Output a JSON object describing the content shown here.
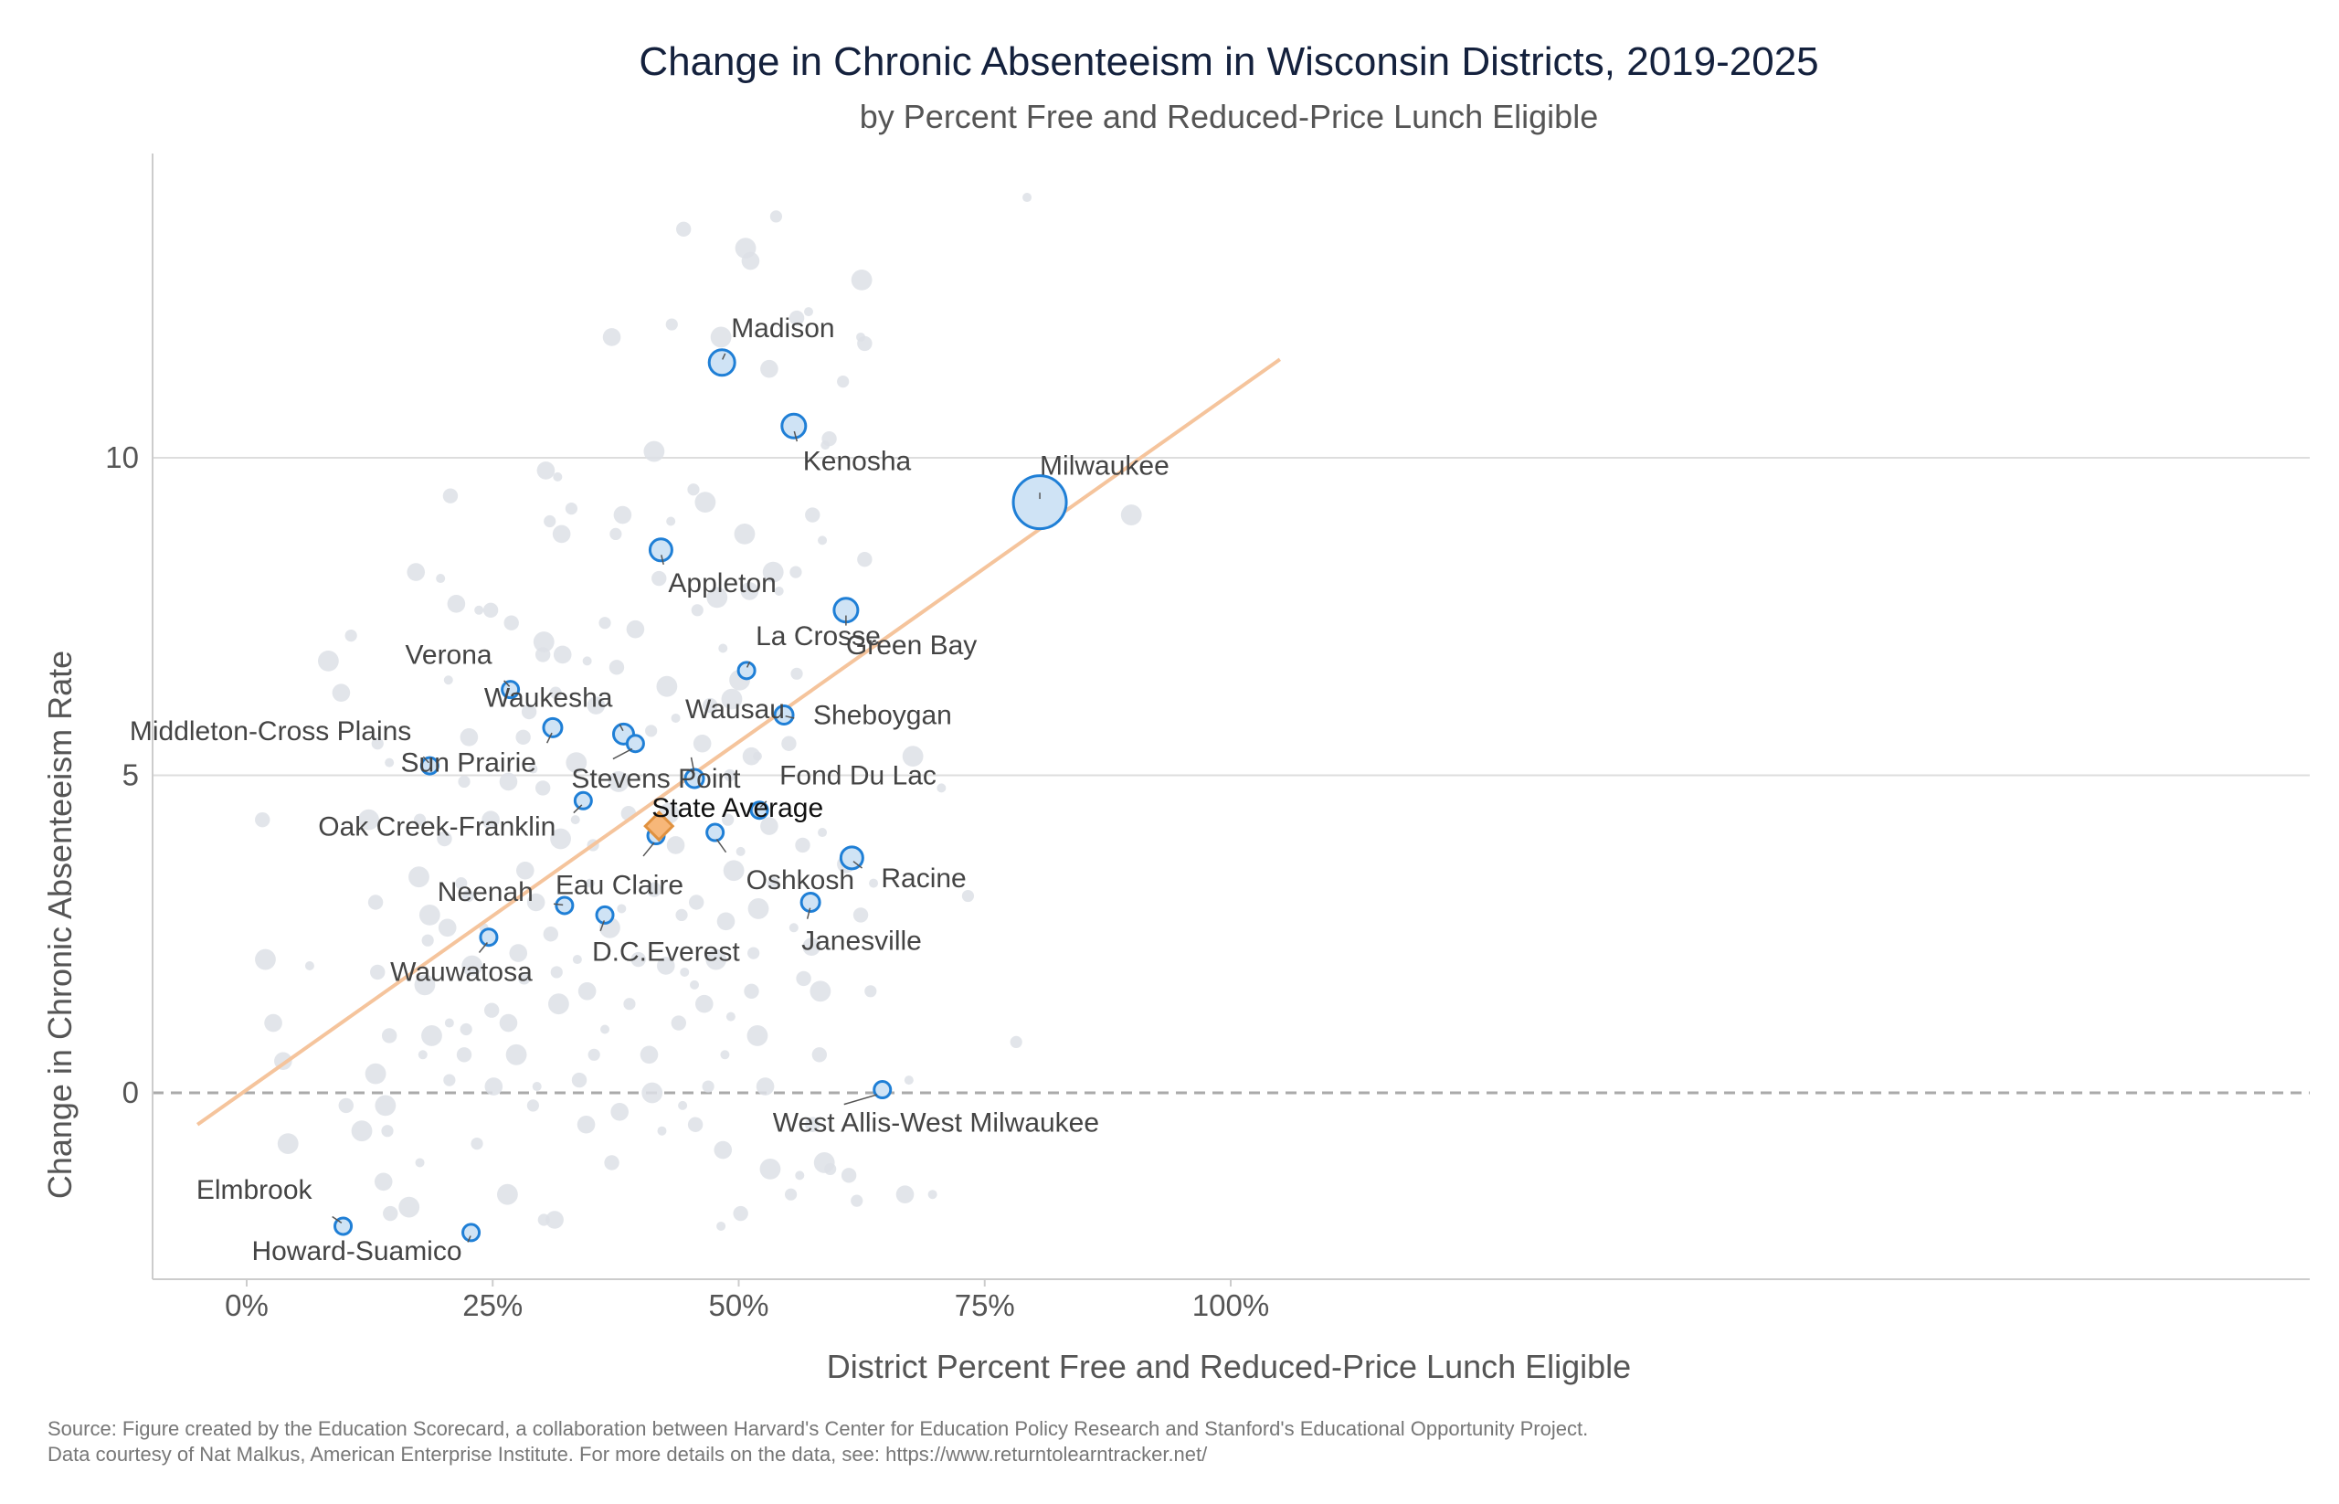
{
  "chart_data": {
    "type": "scatter",
    "title": "Change in Chronic Absenteeism in Wisconsin Districts, 2019-2025",
    "subtitle": "by Percent Free and Reduced-Price Lunch Eligible",
    "xlabel": "District Percent Free and Reduced-Price Lunch Eligible",
    "ylabel": "Change in Chronic Absenteeism Rate",
    "xlim": [
      -5,
      105
    ],
    "ylim": [
      -3,
      14.8
    ],
    "x_ticks": [
      0,
      25,
      50,
      75,
      100
    ],
    "x_tick_labels": [
      "0%",
      "25%",
      "50%",
      "75%",
      "100%"
    ],
    "y_ticks": [
      0,
      5,
      10
    ],
    "y_tick_labels": [
      "0",
      "5",
      "10"
    ],
    "grid": true,
    "colors": {
      "highlight_fill": "#cfe3f5",
      "highlight_stroke": "#1f7fd6",
      "background_point": "#dde1e6",
      "trend_line": "#f5c49c",
      "average_fill": "#f7b779",
      "average_stroke": "#e0913f",
      "zero_line": "#aaaaaa",
      "gridline": "#dddddd"
    },
    "trend_line": {
      "x": [
        -5,
        105
      ],
      "y": [
        -0.5,
        11.55
      ]
    },
    "average": {
      "label": "State Average",
      "x": 41.9,
      "y": 4.2
    },
    "highlighted": [
      {
        "label": "Madison",
        "x": 48.3,
        "y": 11.5,
        "size": 11
      },
      {
        "label": "Kenosha",
        "x": 55.6,
        "y": 10.5,
        "size": 10
      },
      {
        "label": "Milwaukee",
        "x": 80.6,
        "y": 9.3,
        "size": 26
      },
      {
        "label": "Appleton",
        "x": 42.1,
        "y": 8.55,
        "size": 9
      },
      {
        "label": "Green Bay",
        "x": 60.9,
        "y": 7.6,
        "size": 10
      },
      {
        "label": "La Crosse",
        "x": 50.8,
        "y": 6.65,
        "size": 6
      },
      {
        "label": "Verona",
        "x": 26.8,
        "y": 6.35,
        "size": 6
      },
      {
        "label": "Sheboygan",
        "x": 54.6,
        "y": 5.95,
        "size": 7
      },
      {
        "label": "Sun Prairie",
        "x": 31.1,
        "y": 5.75,
        "size": 7
      },
      {
        "label": "Waukesha",
        "x": 38.3,
        "y": 5.65,
        "size": 8
      },
      {
        "label": "Stevens Point",
        "x": 39.5,
        "y": 5.5,
        "size": 6
      },
      {
        "label": "Middleton-Cross Plains",
        "x": 18.6,
        "y": 5.15,
        "size": 6
      },
      {
        "label": "Wausau",
        "x": 45.5,
        "y": 4.95,
        "size": 7
      },
      {
        "label": "Oak Creek-Franklin",
        "x": 34.2,
        "y": 4.6,
        "size": 6
      },
      {
        "label": "Fond Du Lac",
        "x": 52.1,
        "y": 4.45,
        "size": 6
      },
      {
        "label": "Oshkosh",
        "x": 47.6,
        "y": 4.1,
        "size": 6
      },
      {
        "label": "Racine",
        "x": 61.5,
        "y": 3.7,
        "size": 9
      },
      {
        "label": "Eau Claire",
        "x": 41.6,
        "y": 4.05,
        "size": 6
      },
      {
        "label": "Neenah",
        "x": 32.3,
        "y": 2.95,
        "size": 6
      },
      {
        "label": "Janesville",
        "x": 57.3,
        "y": 3.0,
        "size": 7
      },
      {
        "label": "D.C.Everest",
        "x": 36.4,
        "y": 2.8,
        "size": 6
      },
      {
        "label": "Wauwatosa",
        "x": 24.6,
        "y": 2.45,
        "size": 6
      },
      {
        "label": "West Allis-West Milwaukee",
        "x": 64.6,
        "y": 0.05,
        "size": 6
      },
      {
        "label": "Elmbrook",
        "x": 9.8,
        "y": -2.1,
        "size": 6
      },
      {
        "label": "Howard-Suamico",
        "x": 22.8,
        "y": -2.2,
        "size": 6
      }
    ],
    "other_districts": [
      [
        79.3,
        14.1
      ],
      [
        44.4,
        13.6
      ],
      [
        50.7,
        13.3
      ],
      [
        53.8,
        13.8
      ],
      [
        51.2,
        13.1
      ],
      [
        57.1,
        12.3
      ],
      [
        55.9,
        12.2
      ],
      [
        62.5,
        12.8
      ],
      [
        43.2,
        12.1
      ],
      [
        37.1,
        11.9
      ],
      [
        62.4,
        11.9
      ],
      [
        62.8,
        11.8
      ],
      [
        48.2,
        11.9
      ],
      [
        60.6,
        11.2
      ],
      [
        53.1,
        11.4
      ],
      [
        58.8,
        10.2
      ],
      [
        59.2,
        10.3
      ],
      [
        41.4,
        10.1
      ],
      [
        45.4,
        9.5
      ],
      [
        30.4,
        9.8
      ],
      [
        31.6,
        9.7
      ],
      [
        20.7,
        9.4
      ],
      [
        46.6,
        9.3
      ],
      [
        30.8,
        9.0
      ],
      [
        38.2,
        9.1
      ],
      [
        43.1,
        9.0
      ],
      [
        57.5,
        9.1
      ],
      [
        50.6,
        8.8
      ],
      [
        37.5,
        8.8
      ],
      [
        32.0,
        8.8
      ],
      [
        58.5,
        8.7
      ],
      [
        62.8,
        8.4
      ],
      [
        89.9,
        9.1
      ],
      [
        33.0,
        9.2
      ],
      [
        17.2,
        8.2
      ],
      [
        19.7,
        8.1
      ],
      [
        41.9,
        8.1
      ],
      [
        53.5,
        8.2
      ],
      [
        55.8,
        8.2
      ],
      [
        51.1,
        7.9
      ],
      [
        54.1,
        7.9
      ],
      [
        24.8,
        7.6
      ],
      [
        47.8,
        7.8
      ],
      [
        45.8,
        7.6
      ],
      [
        21.3,
        7.7
      ],
      [
        23.6,
        7.6
      ],
      [
        26.9,
        7.4
      ],
      [
        30.2,
        7.1
      ],
      [
        36.4,
        7.4
      ],
      [
        39.5,
        7.3
      ],
      [
        48.4,
        7.0
      ],
      [
        30.1,
        6.9
      ],
      [
        8.3,
        6.8
      ],
      [
        10.6,
        7.2
      ],
      [
        32.1,
        6.9
      ],
      [
        34.6,
        6.8
      ],
      [
        37.6,
        6.7
      ],
      [
        50.1,
        6.5
      ],
      [
        55.9,
        6.6
      ],
      [
        9.6,
        6.3
      ],
      [
        20.5,
        6.5
      ],
      [
        28.7,
        6.0
      ],
      [
        42.7,
        6.4
      ],
      [
        31.4,
        6.3
      ],
      [
        35.5,
        6.1
      ],
      [
        43.6,
        5.9
      ],
      [
        47.1,
        6.1
      ],
      [
        49.3,
        6.2
      ],
      [
        13.3,
        5.5
      ],
      [
        22.6,
        5.6
      ],
      [
        14.5,
        5.2
      ],
      [
        28.1,
        5.6
      ],
      [
        33.5,
        5.2
      ],
      [
        41.1,
        5.7
      ],
      [
        46.3,
        5.5
      ],
      [
        51.9,
        5.3
      ],
      [
        55.1,
        5.5
      ],
      [
        67.7,
        5.3
      ],
      [
        22.1,
        4.9
      ],
      [
        26.6,
        4.9
      ],
      [
        29.1,
        5.1
      ],
      [
        30.1,
        4.8
      ],
      [
        37.8,
        4.9
      ],
      [
        49.1,
        5.0
      ],
      [
        51.3,
        5.3
      ],
      [
        70.6,
        4.8
      ],
      [
        1.6,
        4.3
      ],
      [
        12.4,
        4.3
      ],
      [
        17.6,
        4.3
      ],
      [
        24.8,
        4.3
      ],
      [
        33.4,
        4.3
      ],
      [
        38.8,
        4.4
      ],
      [
        42.9,
        4.4
      ],
      [
        48.9,
        4.3
      ],
      [
        53.1,
        4.2
      ],
      [
        58.5,
        4.1
      ],
      [
        20.1,
        4.0
      ],
      [
        31.9,
        4.0
      ],
      [
        35.2,
        3.9
      ],
      [
        43.6,
        3.9
      ],
      [
        50.2,
        3.8
      ],
      [
        56.5,
        3.9
      ],
      [
        17.5,
        3.4
      ],
      [
        21.8,
        3.3
      ],
      [
        28.3,
        3.5
      ],
      [
        34.9,
        3.3
      ],
      [
        41.4,
        3.2
      ],
      [
        49.5,
        3.5
      ],
      [
        53.5,
        3.3
      ],
      [
        60.9,
        3.6
      ],
      [
        63.7,
        3.3
      ],
      [
        13.1,
        3.0
      ],
      [
        18.6,
        2.8
      ],
      [
        22.5,
        3.1
      ],
      [
        29.4,
        3.0
      ],
      [
        38.1,
        2.9
      ],
      [
        45.7,
        3.0
      ],
      [
        52.0,
        2.9
      ],
      [
        73.3,
        3.1
      ],
      [
        20.4,
        2.6
      ],
      [
        24.1,
        2.6
      ],
      [
        30.9,
        2.5
      ],
      [
        36.9,
        2.6
      ],
      [
        44.2,
        2.8
      ],
      [
        48.7,
        2.7
      ],
      [
        55.6,
        2.6
      ],
      [
        62.4,
        2.8
      ],
      [
        1.9,
        2.1
      ],
      [
        18.4,
        2.4
      ],
      [
        27.6,
        2.2
      ],
      [
        33.6,
        2.1
      ],
      [
        39.8,
        2.1
      ],
      [
        47.7,
        2.1
      ],
      [
        51.5,
        2.2
      ],
      [
        57.4,
        2.3
      ],
      [
        6.4,
        2.0
      ],
      [
        13.3,
        1.9
      ],
      [
        22.9,
        2.0
      ],
      [
        31.5,
        1.9
      ],
      [
        42.6,
        2.0
      ],
      [
        44.5,
        1.9
      ],
      [
        56.6,
        1.8
      ],
      [
        18.1,
        1.7
      ],
      [
        28.2,
        1.8
      ],
      [
        34.6,
        1.6
      ],
      [
        45.5,
        1.7
      ],
      [
        51.3,
        1.6
      ],
      [
        58.3,
        1.6
      ],
      [
        63.4,
        1.6
      ],
      [
        2.7,
        1.1
      ],
      [
        20.6,
        1.1
      ],
      [
        24.9,
        1.3
      ],
      [
        31.7,
        1.4
      ],
      [
        38.9,
        1.4
      ],
      [
        46.5,
        1.4
      ],
      [
        49.2,
        1.2
      ],
      [
        14.5,
        0.9
      ],
      [
        18.8,
        0.9
      ],
      [
        22.3,
        1.0
      ],
      [
        26.6,
        1.1
      ],
      [
        36.4,
        1.0
      ],
      [
        43.9,
        1.1
      ],
      [
        51.9,
        0.9
      ],
      [
        78.2,
        0.8
      ],
      [
        3.7,
        0.5
      ],
      [
        17.9,
        0.6
      ],
      [
        22.1,
        0.6
      ],
      [
        27.4,
        0.6
      ],
      [
        35.3,
        0.6
      ],
      [
        40.9,
        0.6
      ],
      [
        48.6,
        0.6
      ],
      [
        58.2,
        0.6
      ],
      [
        13.1,
        0.3
      ],
      [
        20.6,
        0.2
      ],
      [
        25.1,
        0.1
      ],
      [
        29.5,
        0.1
      ],
      [
        33.8,
        0.2
      ],
      [
        41.2,
        0.0
      ],
      [
        46.9,
        0.1
      ],
      [
        52.7,
        0.1
      ],
      [
        67.3,
        0.2
      ],
      [
        10.1,
        -0.2
      ],
      [
        14.1,
        -0.2
      ],
      [
        29.1,
        -0.2
      ],
      [
        37.9,
        -0.3
      ],
      [
        44.3,
        -0.2
      ],
      [
        57.5,
        -0.5
      ],
      [
        11.7,
        -0.6
      ],
      [
        14.3,
        -0.6
      ],
      [
        34.5,
        -0.5
      ],
      [
        42.2,
        -0.6
      ],
      [
        45.6,
        -0.5
      ],
      [
        4.2,
        -0.8
      ],
      [
        23.4,
        -0.8
      ],
      [
        48.4,
        -0.9
      ],
      [
        17.6,
        -1.1
      ],
      [
        37.1,
        -1.1
      ],
      [
        53.2,
        -1.2
      ],
      [
        59.3,
        -1.2
      ],
      [
        13.9,
        -1.4
      ],
      [
        56.2,
        -1.3
      ],
      [
        61.2,
        -1.3
      ],
      [
        26.5,
        -1.6
      ],
      [
        55.3,
        -1.6
      ],
      [
        66.9,
        -1.6
      ],
      [
        69.7,
        -1.6
      ],
      [
        14.6,
        -1.9
      ],
      [
        16.5,
        -1.8
      ],
      [
        30.2,
        -2.0
      ],
      [
        31.3,
        -2.0
      ],
      [
        48.2,
        -2.1
      ],
      [
        50.2,
        -1.9
      ],
      [
        58.7,
        -1.1
      ],
      [
        62.0,
        -1.7
      ]
    ]
  },
  "source": {
    "line1": "Source: Figure created by the Education Scorecard, a collaboration between Harvard's Center for Education Policy Research and Stanford's Educational Opportunity Project.",
    "line2": "Data courtesy of Nat Malkus, American Enterprise Institute. For more details on the data, see: https://www.returntolearntracker.net/"
  }
}
